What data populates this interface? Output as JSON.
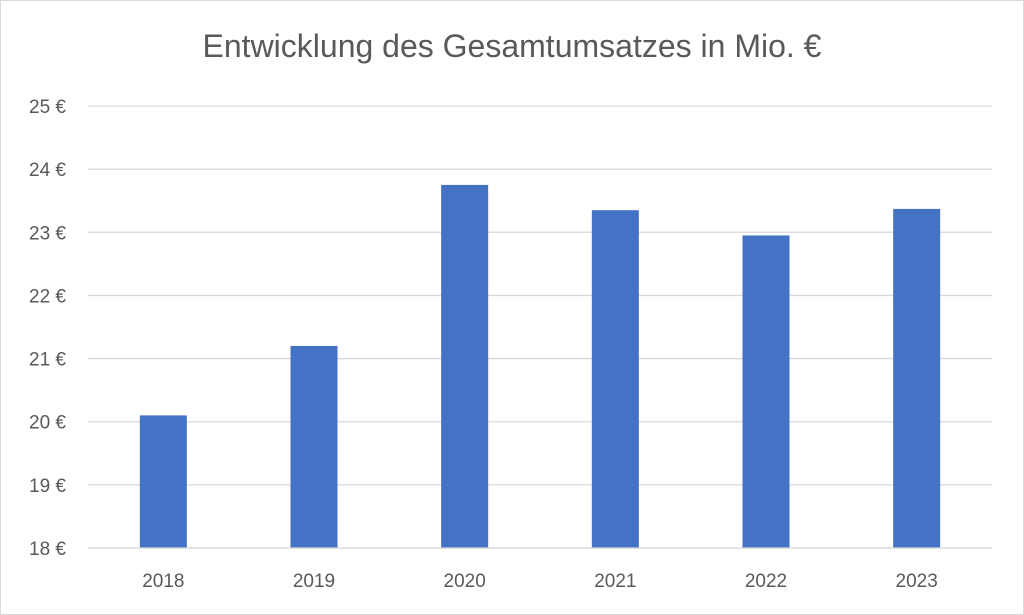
{
  "chart_data": {
    "type": "bar",
    "title": "Entwicklung des Gesamtumsatzes in Mio. €",
    "xlabel": "",
    "ylabel": "",
    "categories": [
      "2018",
      "2019",
      "2020",
      "2021",
      "2022",
      "2023"
    ],
    "values": [
      20.1,
      21.2,
      23.75,
      23.35,
      22.95,
      23.37
    ],
    "ylim": [
      18,
      25
    ],
    "yticks": [
      18,
      19,
      20,
      21,
      22,
      23,
      24,
      25
    ],
    "ytick_labels": [
      "18 €",
      "19 €",
      "20 €",
      "21 €",
      "22 €",
      "23 €",
      "24 €",
      "25 €"
    ],
    "grid": true,
    "legend": "none",
    "colors": {
      "bar": "#4472C4",
      "grid": "#d9d9d9",
      "text": "#595959"
    }
  }
}
